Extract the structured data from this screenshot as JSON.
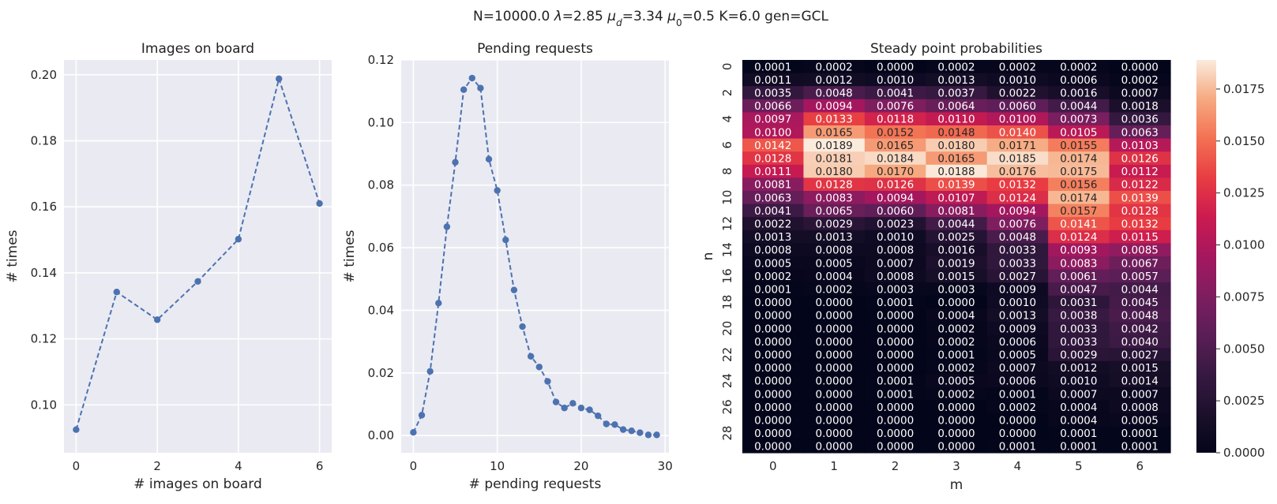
{
  "suptitle": {
    "parts": [
      {
        "t": "N=10000.0  "
      },
      {
        "t": "λ",
        "it": true
      },
      {
        "t": "=2.85  "
      },
      {
        "t": "μ",
        "it": true
      },
      {
        "t": "d",
        "it": true,
        "sub": true
      },
      {
        "t": "=3.34  "
      },
      {
        "t": "μ",
        "it": true
      },
      {
        "t": "0",
        "sub": true
      },
      {
        "t": "=0.5  K=6.0  gen=GCL"
      }
    ]
  },
  "chart_data": [
    {
      "type": "line",
      "title": "Images on board",
      "xlabel": "# images on board",
      "ylabel": "# times",
      "xlim": [
        -0.3,
        6.3
      ],
      "ylim": [
        0.0855,
        0.2045
      ],
      "xticks": [
        0,
        2,
        4,
        6
      ],
      "yticks": [
        0.1,
        0.12,
        0.14,
        0.16,
        0.18,
        0.2
      ],
      "ytick_labels": [
        "0.10",
        "0.12",
        "0.14",
        "0.16",
        "0.18",
        "0.20"
      ],
      "x": [
        0,
        1,
        2,
        3,
        4,
        5,
        6
      ],
      "values": [
        0.0925,
        0.1342,
        0.1258,
        0.1374,
        0.1502,
        0.1988,
        0.161
      ],
      "color": "#4c72b0",
      "grid": true
    },
    {
      "type": "line",
      "title": "Pending requests",
      "xlabel": "# pending requests",
      "ylabel": "# times",
      "xlim": [
        -1.45,
        30.45
      ],
      "ylim": [
        -0.0055,
        0.12
      ],
      "xticks": [
        0,
        10,
        20,
        30
      ],
      "yticks": [
        0.0,
        0.02,
        0.04,
        0.06,
        0.08,
        0.1,
        0.12
      ],
      "ytick_labels": [
        "0.00",
        "0.02",
        "0.04",
        "0.06",
        "0.08",
        "0.10",
        "0.12"
      ],
      "x": [
        0,
        1,
        2,
        3,
        4,
        5,
        6,
        7,
        8,
        9,
        10,
        11,
        12,
        13,
        14,
        15,
        16,
        17,
        18,
        19,
        20,
        21,
        22,
        23,
        24,
        25,
        26,
        27,
        28,
        29
      ],
      "values": [
        0.001,
        0.0065,
        0.0205,
        0.0423,
        0.0667,
        0.0873,
        0.1105,
        0.1142,
        0.111,
        0.0883,
        0.0783,
        0.0625,
        0.0465,
        0.0348,
        0.0253,
        0.0219,
        0.0173,
        0.0107,
        0.0088,
        0.0103,
        0.0088,
        0.0082,
        0.0063,
        0.0037,
        0.0035,
        0.0019,
        0.0015,
        0.0009,
        0.0002,
        0.0002
      ],
      "color": "#4c72b0",
      "grid": true
    },
    {
      "type": "heatmap",
      "title": "Steady point probabilities",
      "xlabel": "m",
      "ylabel": "n",
      "x_labels": [
        "0",
        "1",
        "2",
        "3",
        "4",
        "5",
        "6"
      ],
      "y_tick_rows": [
        0,
        2,
        4,
        6,
        8,
        10,
        12,
        14,
        16,
        18,
        20,
        22,
        24,
        26,
        28
      ],
      "vmin": 0.0,
      "vmax": 0.0189,
      "colorbar_ticks": [
        0.0,
        0.0025,
        0.005,
        0.0075,
        0.01,
        0.0125,
        0.015,
        0.0175
      ],
      "colorbar_tick_labels": [
        "0.0000",
        "0.0025",
        "0.0050",
        "0.0075",
        "0.0100",
        "0.0125",
        "0.0150",
        "0.0175"
      ],
      "values": [
        [
          "0.0001",
          "0.0002",
          "0.0000",
          "0.0002",
          "0.0002",
          "0.0002",
          "0.0000"
        ],
        [
          "0.0011",
          "0.0012",
          "0.0010",
          "0.0013",
          "0.0010",
          "0.0006",
          "0.0002"
        ],
        [
          "0.0035",
          "0.0048",
          "0.0041",
          "0.0037",
          "0.0022",
          "0.0016",
          "0.0007"
        ],
        [
          "0.0066",
          "0.0094",
          "0.0076",
          "0.0064",
          "0.0060",
          "0.0044",
          "0.0018"
        ],
        [
          "0.0097",
          "0.0133",
          "0.0118",
          "0.0110",
          "0.0100",
          "0.0073",
          "0.0036"
        ],
        [
          "0.0100",
          "0.0165",
          "0.0152",
          "0.0148",
          "0.0140",
          "0.0105",
          "0.0063"
        ],
        [
          "0.0142",
          "0.0189",
          "0.0165",
          "0.0180",
          "0.0171",
          "0.0155",
          "0.0103"
        ],
        [
          "0.0128",
          "0.0181",
          "0.0184",
          "0.0165",
          "0.0185",
          "0.0174",
          "0.0126"
        ],
        [
          "0.0111",
          "0.0180",
          "0.0170",
          "0.0188",
          "0.0176",
          "0.0175",
          "0.0112"
        ],
        [
          "0.0081",
          "0.0128",
          "0.0126",
          "0.0139",
          "0.0132",
          "0.0156",
          "0.0122"
        ],
        [
          "0.0063",
          "0.0083",
          "0.0094",
          "0.0107",
          "0.0124",
          "0.0174",
          "0.0139"
        ],
        [
          "0.0041",
          "0.0065",
          "0.0060",
          "0.0081",
          "0.0094",
          "0.0157",
          "0.0128"
        ],
        [
          "0.0022",
          "0.0029",
          "0.0023",
          "0.0044",
          "0.0076",
          "0.0141",
          "0.0132"
        ],
        [
          "0.0013",
          "0.0013",
          "0.0010",
          "0.0025",
          "0.0048",
          "0.0124",
          "0.0115"
        ],
        [
          "0.0008",
          "0.0008",
          "0.0008",
          "0.0016",
          "0.0033",
          "0.0093",
          "0.0085"
        ],
        [
          "0.0005",
          "0.0005",
          "0.0007",
          "0.0019",
          "0.0033",
          "0.0083",
          "0.0067"
        ],
        [
          "0.0002",
          "0.0004",
          "0.0008",
          "0.0015",
          "0.0027",
          "0.0061",
          "0.0057"
        ],
        [
          "0.0001",
          "0.0002",
          "0.0003",
          "0.0003",
          "0.0009",
          "0.0047",
          "0.0044"
        ],
        [
          "0.0000",
          "0.0000",
          "0.0001",
          "0.0000",
          "0.0010",
          "0.0031",
          "0.0045"
        ],
        [
          "0.0000",
          "0.0000",
          "0.0000",
          "0.0004",
          "0.0013",
          "0.0038",
          "0.0048"
        ],
        [
          "0.0000",
          "0.0000",
          "0.0000",
          "0.0002",
          "0.0009",
          "0.0033",
          "0.0042"
        ],
        [
          "0.0000",
          "0.0000",
          "0.0000",
          "0.0002",
          "0.0006",
          "0.0033",
          "0.0040"
        ],
        [
          "0.0000",
          "0.0000",
          "0.0000",
          "0.0001",
          "0.0005",
          "0.0029",
          "0.0027"
        ],
        [
          "0.0000",
          "0.0000",
          "0.0000",
          "0.0002",
          "0.0007",
          "0.0012",
          "0.0015"
        ],
        [
          "0.0000",
          "0.0000",
          "0.0001",
          "0.0005",
          "0.0006",
          "0.0010",
          "0.0014"
        ],
        [
          "0.0000",
          "0.0000",
          "0.0001",
          "0.0002",
          "0.0001",
          "0.0007",
          "0.0007"
        ],
        [
          "0.0000",
          "0.0000",
          "0.0000",
          "0.0000",
          "0.0002",
          "0.0004",
          "0.0008"
        ],
        [
          "0.0000",
          "0.0000",
          "0.0000",
          "0.0000",
          "0.0000",
          "0.0004",
          "0.0005"
        ],
        [
          "0.0000",
          "0.0000",
          "0.0000",
          "0.0000",
          "0.0000",
          "0.0001",
          "0.0001"
        ],
        [
          "0.0000",
          "0.0000",
          "0.0000",
          "0.0000",
          "0.0001",
          "0.0001",
          "0.0001"
        ]
      ]
    }
  ]
}
